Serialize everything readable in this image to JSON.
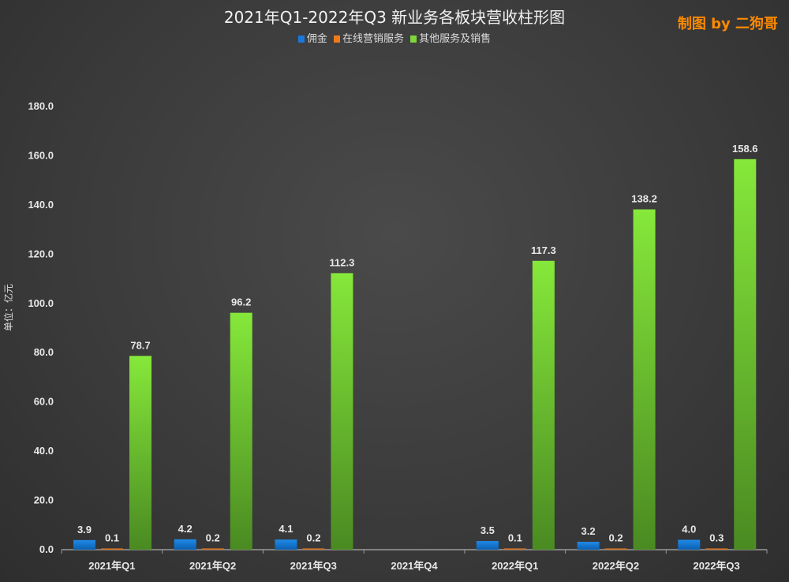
{
  "chart_data": {
    "type": "bar",
    "title": "2021年Q1-2022年Q3 新业务各板块营收柱形图",
    "credit": "制图 by 二狗哥",
    "ylabel": "单位：亿元",
    "xlabel": "",
    "ylim": [
      0,
      180
    ],
    "yticks": [
      "0.0",
      "20.0",
      "40.0",
      "60.0",
      "80.0",
      "100.0",
      "120.0",
      "140.0",
      "160.0",
      "180.0"
    ],
    "legend_position": "top-center",
    "categories": [
      "2021年Q1",
      "2021年Q2",
      "2021年Q3",
      "2021年Q4",
      "2022年Q1",
      "2022年Q2",
      "2022年Q3"
    ],
    "series": [
      {
        "name": "佣金",
        "color": "#1a78d8",
        "values": [
          3.9,
          4.2,
          4.1,
          null,
          3.5,
          3.2,
          4.0
        ]
      },
      {
        "name": "在线营销服务",
        "color": "#f07a1a",
        "values": [
          0.1,
          0.2,
          0.2,
          null,
          0.1,
          0.2,
          0.3
        ]
      },
      {
        "name": "其他服务及销售",
        "color": "#7ed63a",
        "values": [
          78.7,
          96.2,
          112.3,
          null,
          117.3,
          138.2,
          158.6
        ]
      }
    ]
  }
}
